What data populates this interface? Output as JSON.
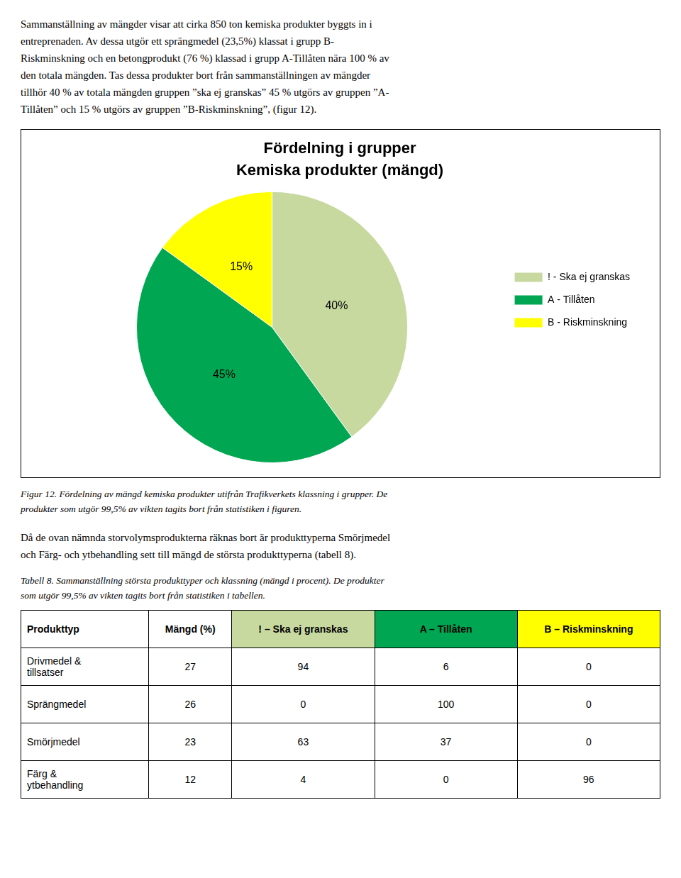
{
  "intro_text": [
    "Sammanställning av mängder visar att cirka 850 ton kemiska produkter byggts in i",
    "entreprenaden. Av dessa utgör ett sprängmedel (23,5%) klassat i grupp B-",
    "Riskminskning och en betongprodukt (76 %) klassad i grupp A-Tillåten nära 100 % av",
    "den totala mängden. Tas dessa produkter bort från sammanställningen av mängder",
    "tillhör 40 % av totala mängden gruppen ”ska ej granskas” 45 % utgörs av gruppen ”A-",
    "Tillåten” och 15 % utgörs av gruppen ”B-Riskminskning”, (figur 12)."
  ],
  "chart_data": {
    "type": "pie",
    "title": "Fördelning i grupper",
    "subtitle": "Kemiska produkter (mängd)",
    "categories": [
      "! - Ska ej granskas",
      "A - Tillåten",
      "B - Riskminskning"
    ],
    "values": [
      40,
      45,
      15
    ],
    "value_labels": [
      "40%",
      "45%",
      "15%"
    ],
    "colors": [
      "#c8d9a0",
      "#00a651",
      "#ffff00"
    ],
    "data_labels": true,
    "legend": "right"
  },
  "figure_caption": [
    "Figur 12. Fördelning av mängd kemiska produkter utifrån Trafikverkets klassning i grupper. De",
    "produkter som utgör 99,5% av vikten tagits bort från statistiken i figuren."
  ],
  "middle_text": [
    "Då de ovan nämnda storvolymsprodukterna räknas bort är produkttyperna Smörjmedel",
    "och Färg- och ytbehandling sett till mängd de största produkttyperna (tabell 8)."
  ],
  "table_caption": [
    "Tabell 8. Sammanställning största produkttyper och klassning (mängd i procent). De produkter",
    "som utgör 99,5% av vikten tagits bort från statistiken i tabellen."
  ],
  "table": {
    "headers": [
      "Produkttyp",
      "Mängd (%)",
      "! – Ska ej granskas",
      "A – Tillåten",
      "B – Riskminskning"
    ],
    "header_colors": [
      "#ffffff",
      "#ffffff",
      "#c8d9a0",
      "#00a651",
      "#ffff00"
    ],
    "rows": [
      [
        "Drivmedel &\ntillsatser",
        "27",
        "94",
        "6",
        "0"
      ],
      [
        "Sprängmedel",
        "26",
        "0",
        "100",
        "0"
      ],
      [
        "Smörjmedel",
        "23",
        "63",
        "37",
        "0"
      ],
      [
        "Färg &\nytbehandling",
        "12",
        "4",
        "0",
        "96"
      ]
    ]
  }
}
